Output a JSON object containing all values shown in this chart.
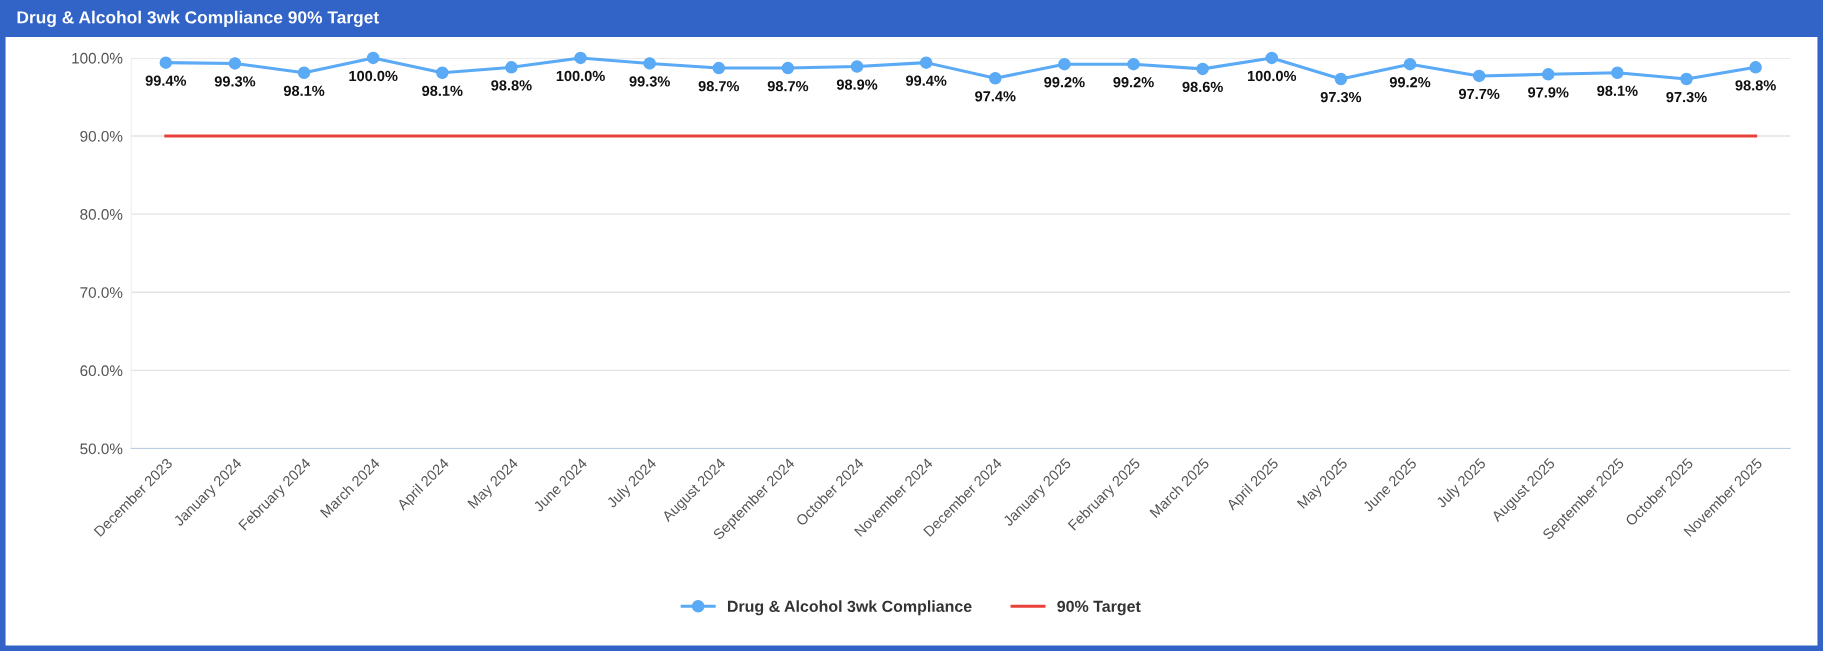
{
  "chart_data": {
    "type": "line",
    "title": "Drug & Alcohol 3wk Compliance 90% Target",
    "categories": [
      "December 2023",
      "January 2024",
      "February 2024",
      "March 2024",
      "April 2024",
      "May 2024",
      "June 2024",
      "July 2024",
      "August 2024",
      "September 2024",
      "October 2024",
      "November 2024",
      "December 2024",
      "January 2025",
      "February 2025",
      "March 2025",
      "April 2025",
      "May 2025",
      "June 2025",
      "July 2025",
      "August 2025",
      "September 2025",
      "October 2025",
      "November 2025"
    ],
    "series": [
      {
        "name": "Drug & Alcohol 3wk Compliance",
        "color": "#5aaaf5",
        "marker": "circle",
        "values": [
          99.4,
          99.3,
          98.1,
          100.0,
          98.1,
          98.8,
          100.0,
          99.3,
          98.7,
          98.7,
          98.9,
          99.4,
          97.4,
          99.2,
          99.2,
          98.6,
          100.0,
          97.3,
          99.2,
          97.7,
          97.9,
          98.1,
          97.3,
          98.8
        ],
        "value_labels": [
          "99.4%",
          "99.3%",
          "98.1%",
          "100.0%",
          "98.1%",
          "98.8%",
          "100.0%",
          "99.3%",
          "98.7%",
          "98.7%",
          "98.9%",
          "99.4%",
          "97.4%",
          "99.2%",
          "99.2%",
          "98.6%",
          "100.0%",
          "97.3%",
          "99.2%",
          "97.7%",
          "97.9%",
          "98.1%",
          "97.3%",
          "98.8%"
        ]
      },
      {
        "name": "90% Target",
        "color": "#e8423a",
        "marker": "none",
        "values": [
          90,
          90,
          90,
          90,
          90,
          90,
          90,
          90,
          90,
          90,
          90,
          90,
          90,
          90,
          90,
          90,
          90,
          90,
          90,
          90,
          90,
          90,
          90,
          90
        ]
      }
    ],
    "ylim": [
      50,
      100
    ],
    "yticks": [
      {
        "value": 50,
        "label": "50.0%"
      },
      {
        "value": 60,
        "label": "60.0%"
      },
      {
        "value": 70,
        "label": "70.0%"
      },
      {
        "value": 80,
        "label": "80.0%"
      },
      {
        "value": 90,
        "label": "90.0%"
      },
      {
        "value": 100,
        "label": "100.0%"
      }
    ],
    "grid": "y",
    "legend": "bottom"
  }
}
